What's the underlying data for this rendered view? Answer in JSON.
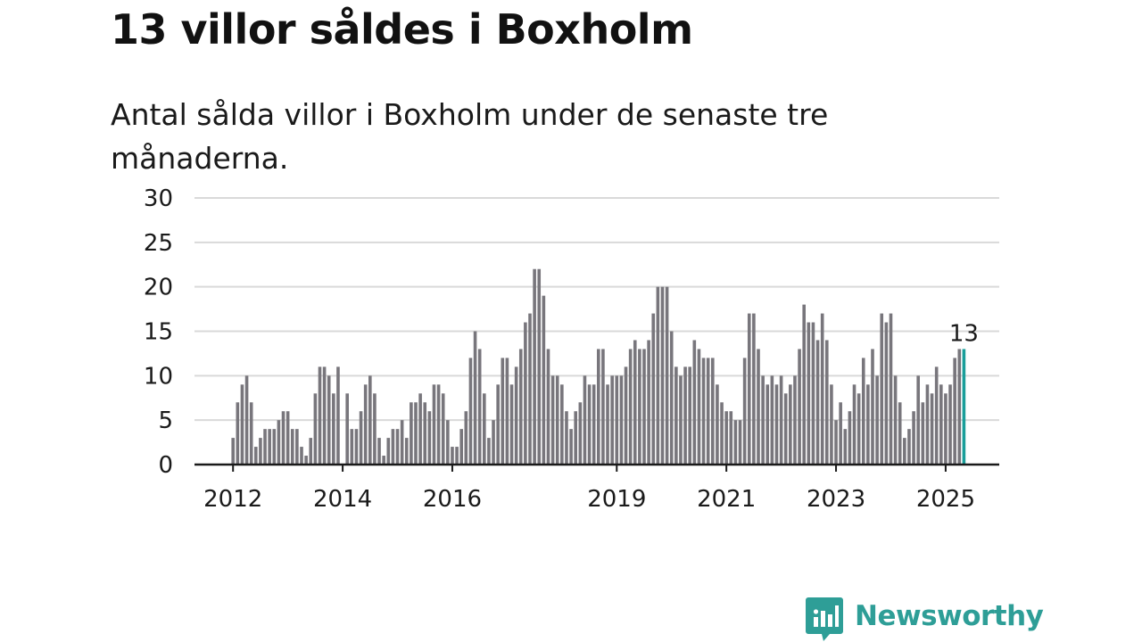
{
  "header": {
    "title": "13 villor såldes i Boxholm",
    "subtitle": "Antal sålda villor i Boxholm under de senaste tre månaderna."
  },
  "chart_data": {
    "type": "bar",
    "title": "13 villor såldes i Boxholm",
    "subtitle": "Antal sålda villor i Boxholm under de senaste tre månaderna.",
    "xlabel": "",
    "ylabel": "",
    "ylim": [
      0,
      30
    ],
    "yticks": [
      0,
      5,
      10,
      15,
      20,
      25,
      30
    ],
    "xtick_labels": [
      "2012",
      "2014",
      "2016",
      "2019",
      "2021",
      "2023",
      "2025"
    ],
    "grid": true,
    "highlight_label": "13",
    "colors": {
      "bar": "#78767c",
      "highlight": "#1a9e9a",
      "grid": "#d9d9d9",
      "axis": "#1a1a1a"
    },
    "series": [
      {
        "values": [
          3,
          7,
          9,
          10,
          7,
          2,
          3,
          4,
          4,
          4,
          5,
          6,
          6,
          4,
          4,
          2,
          1,
          3,
          8,
          11,
          11,
          10,
          8,
          11,
          0,
          8,
          4,
          4,
          6,
          9,
          10,
          8,
          3,
          1,
          3,
          4,
          4,
          5,
          3,
          7,
          7,
          8,
          7,
          6,
          9,
          9,
          8,
          5,
          2,
          2,
          4,
          6,
          12,
          15,
          13,
          8,
          3,
          5,
          9,
          12,
          12,
          9,
          11,
          13,
          16,
          17,
          22,
          22,
          19,
          13,
          10,
          10,
          9,
          6,
          4,
          6,
          7,
          10,
          9,
          9,
          13,
          13,
          9,
          10,
          10,
          10,
          11,
          13,
          14,
          13,
          13,
          14,
          17,
          20,
          20,
          20,
          15,
          11,
          10,
          11,
          11,
          14,
          13,
          12,
          12,
          12,
          9,
          7,
          6,
          6,
          5,
          5,
          12,
          17,
          17,
          13,
          10,
          9,
          10,
          9,
          10,
          8,
          9,
          10,
          13,
          18,
          16,
          16,
          14,
          17,
          14,
          9,
          5,
          7,
          4,
          6,
          9,
          8,
          12,
          9,
          13,
          10,
          17,
          16,
          17,
          10,
          7,
          3,
          4,
          6,
          10,
          7,
          9,
          8,
          11,
          9,
          8,
          9,
          12,
          13,
          13
        ]
      }
    ]
  },
  "brand": {
    "name": "Newsworthy",
    "icon": "bar-chart-speech-bubble-icon",
    "color": "#2e9e97"
  }
}
